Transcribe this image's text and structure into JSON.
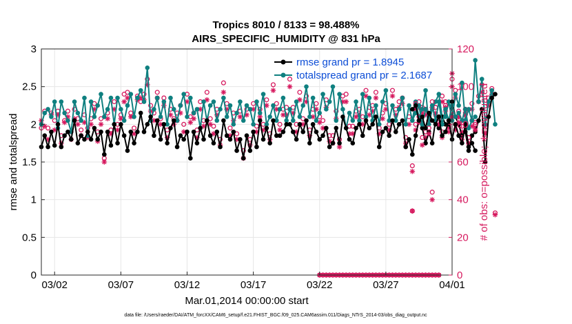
{
  "chart_data": {
    "type": "line",
    "title_line1": "Tropics 8010 / 8133 = 98.488%",
    "title_line2": "AIRS_SPECIFIC_HUMIDITY @ 831 hPa",
    "xlabel": "Mar.01,2014 00:00:00 start",
    "ylabel_left": "rmse and totalspread",
    "ylabel_right": "# of obs: o=possible; ∗=evaluated",
    "xlim": [
      0,
      31
    ],
    "ylim_left": [
      0,
      3
    ],
    "ylim_right": [
      0,
      120
    ],
    "x_ticks": [
      {
        "value": 1,
        "label": "03/02"
      },
      {
        "value": 6,
        "label": "03/07"
      },
      {
        "value": 11,
        "label": "03/12"
      },
      {
        "value": 16,
        "label": "03/17"
      },
      {
        "value": 21,
        "label": "03/22"
      },
      {
        "value": 26,
        "label": "03/27"
      },
      {
        "value": 31,
        "label": "04/01"
      }
    ],
    "y_ticks_left": [
      {
        "value": 0,
        "label": "0"
      },
      {
        "value": 0.5,
        "label": "0.5"
      },
      {
        "value": 1,
        "label": "1"
      },
      {
        "value": 1.5,
        "label": "1.5"
      },
      {
        "value": 2,
        "label": "2"
      },
      {
        "value": 2.5,
        "label": "2.5"
      },
      {
        "value": 3,
        "label": "3"
      }
    ],
    "y_ticks_right": [
      {
        "value": 0,
        "label": "0"
      },
      {
        "value": 20,
        "label": "20"
      },
      {
        "value": 40,
        "label": "40"
      },
      {
        "value": 60,
        "label": "60"
      },
      {
        "value": 80,
        "label": "80"
      },
      {
        "value": 100,
        "label": "100"
      },
      {
        "value": 120,
        "label": "120"
      }
    ],
    "colors": {
      "rmse": "#000000",
      "totalspread": "#0f8080",
      "obs": "#d6195e",
      "axis_right": "#d6195e",
      "grid": "#e6e6e6",
      "legend_text": "#0c4dd6"
    },
    "legend": [
      {
        "key": "rmse",
        "label": "rmse grand pr = 1.8945"
      },
      {
        "key": "totalspread",
        "label": "totalspread grand pr = 2.1687"
      }
    ],
    "segments": [
      {
        "x_start": 0,
        "dx": 0.25,
        "rmse": [
          1.7,
          1.85,
          1.7,
          1.9,
          1.72,
          2.0,
          1.7,
          1.85,
          1.9,
          1.8,
          2.05,
          1.75,
          1.85,
          1.8,
          1.9,
          1.8,
          1.95,
          1.8,
          1.9,
          1.6,
          1.9,
          1.72,
          2.0,
          1.75,
          2.0,
          1.85,
          1.65,
          1.9,
          1.75,
          1.9,
          2.15,
          1.9,
          2.0,
          2.1,
          1.85,
          2.05,
          1.8,
          2.0,
          1.75,
          1.95,
          2.05,
          1.7,
          1.85,
          1.8,
          1.9,
          1.55,
          1.9,
          1.75,
          1.95,
          1.8,
          2.05,
          1.85,
          1.75,
          1.9,
          1.7,
          2.05,
          1.85,
          1.8,
          1.9,
          1.65,
          1.8,
          1.55,
          1.85,
          1.65,
          1.9,
          1.7,
          2.05,
          1.8,
          1.95,
          1.75,
          2.05,
          1.85,
          1.85,
          1.9,
          2.0,
          2.0,
          1.9,
          1.8,
          2.0,
          1.9,
          2.05,
          1.75,
          2.0,
          1.9,
          1.8,
          1.85,
          1.95,
          1.7,
          1.75,
          1.95,
          1.75,
          2.1,
          1.95,
          1.8,
          1.75,
          1.95,
          2.0,
          1.85,
          2.05,
          1.95,
          2.0,
          2.1,
          1.7,
          1.9,
          1.95,
          1.85,
          2.05,
          1.9,
          2.0,
          2.05,
          1.7,
          1.8,
          1.6,
          1.85,
          2.05,
          1.95,
          1.75,
          1.9,
          1.75,
          2.05,
          1.95,
          2.1,
          2.0,
          2.0,
          2.3,
          2.1,
          2.0,
          1.85,
          1.9,
          1.65,
          1.85,
          1.9,
          2.05,
          2.2,
          1.5,
          2.1,
          2.35,
          2.4
        ],
        "totalspread": [
          2.0,
          2.15,
          2.2,
          2.1,
          2.3,
          1.95,
          2.3,
          2.15,
          2.05,
          1.9,
          2.3,
          2.15,
          2.05,
          2.35,
          1.85,
          2.3,
          2.1,
          2.25,
          2.4,
          2.1,
          2.2,
          2.35,
          2.0,
          2.35,
          2.2,
          2.05,
          2.25,
          2.4,
          2.1,
          2.35,
          2.45,
          2.3,
          2.75,
          2.05,
          2.2,
          2.35,
          2.1,
          2.3,
          2.0,
          2.35,
          2.2,
          2.05,
          2.25,
          2.4,
          2.1,
          2.35,
          2.15,
          2.2,
          1.95,
          2.3,
          2.05,
          2.25,
          2.3,
          2.05,
          2.2,
          2.35,
          2.1,
          2.25,
          2.0,
          2.15,
          2.3,
          2.05,
          2.25,
          2.2,
          2.0,
          2.3,
          2.15,
          2.4,
          2.0,
          2.1,
          2.25,
          2.05,
          2.2,
          2.35,
          2.05,
          2.2,
          2.05,
          2.3,
          2.1,
          2.25,
          2.5,
          2.1,
          2.35,
          2.05,
          2.15,
          2.4,
          2.2,
          2.3,
          2.5,
          2.05,
          2.4,
          2.2,
          1.95,
          2.15,
          2.05,
          2.3,
          2.05,
          2.4,
          2.1,
          2.35,
          2.05,
          2.25,
          2.0,
          2.3,
          2.45,
          2.05,
          2.25,
          2.05,
          2.2,
          2.35,
          2.0,
          2.25,
          2.05,
          2.3,
          2.1,
          2.2,
          2.45,
          2.0,
          2.2,
          2.3,
          2.4,
          2.1,
          2.1,
          2.3,
          2.05,
          2.4,
          2.25,
          2.55,
          2.05,
          2.2,
          2.05,
          2.85,
          2.3,
          2.6,
          2.0,
          2.3,
          2.45,
          2.0
        ],
        "possible": [
          78,
          87,
          78,
          86,
          82,
          87,
          74,
          82,
          87,
          76,
          88,
          83,
          77,
          85,
          78,
          83,
          91,
          76,
          83,
          62,
          86,
          77,
          92,
          80,
          85,
          96,
          97,
          86,
          78,
          95,
          92,
          96,
          104,
          90,
          86,
          97,
          83,
          94,
          77,
          88,
          83,
          86,
          90,
          80,
          96,
          84,
          86,
          77,
          92,
          82,
          97,
          83,
          79,
          88,
          72,
          102,
          91,
          78,
          86,
          75,
          87,
          66,
          88,
          72,
          91,
          79,
          88,
          80,
          93,
          75,
          101,
          91,
          80,
          88,
          89,
          104,
          89,
          80,
          97,
          83,
          95,
          77,
          88,
          91,
          84,
          82,
          93,
          74,
          74,
          87,
          72,
          95,
          96,
          79,
          79,
          87,
          88,
          84,
          98,
          89,
          90,
          97,
          78,
          86,
          91,
          80,
          98,
          88,
          92,
          94,
          73,
          84,
          58,
          80,
          92,
          89,
          76,
          85,
          44,
          89,
          84,
          95,
          92,
          82,
          104,
          98,
          87,
          79,
          86,
          73,
          91,
          81,
          95,
          101,
          77,
          94,
          99,
          33
        ],
        "evaluated": [
          82,
          79,
          72,
          85,
          77,
          85,
          70,
          81,
          84,
          72,
          83,
          80,
          74,
          81,
          73,
          80,
          88,
          71,
          80,
          60,
          83,
          75,
          88,
          77,
          83,
          92,
          94,
          84,
          75,
          93,
          94,
          93,
          101,
          87,
          82,
          94,
          80,
          90,
          73,
          85,
          80,
          82,
          86,
          76,
          92,
          81,
          83,
          73,
          88,
          79,
          93,
          80,
          75,
          85,
          69,
          97,
          88,
          74,
          82,
          72,
          84,
          62,
          85,
          69,
          88,
          76,
          84,
          77,
          90,
          72,
          98,
          88,
          77,
          85,
          85,
          100,
          86,
          76,
          93,
          80,
          92,
          74,
          84,
          88,
          81,
          78,
          89,
          71,
          70,
          83,
          68,
          92,
          92,
          75,
          75,
          84,
          85,
          80,
          95,
          85,
          87,
          94,
          75,
          83,
          88,
          77,
          95,
          85,
          89,
          91,
          70,
          80,
          55,
          77,
          89,
          86,
          73,
          82,
          40,
          85,
          80,
          92,
          89,
          78,
          100,
          94,
          84,
          76,
          82,
          70,
          88,
          78,
          92,
          97,
          75,
          90,
          96,
          32
        ]
      },
      {
        "x_start": 21,
        "dx": 0.25,
        "rmse": [],
        "totalspread": [],
        "possible": [
          0,
          0,
          0,
          0,
          0,
          0,
          0,
          0,
          0,
          0,
          0,
          0,
          0,
          0,
          0,
          0,
          0,
          0,
          0,
          0,
          0,
          0,
          0,
          0,
          0,
          0,
          0,
          0,
          0,
          0,
          0,
          0,
          0,
          0,
          0,
          0,
          0
        ],
        "evaluated": [
          0,
          0,
          0,
          0,
          0,
          0,
          0,
          0,
          0,
          0,
          0,
          0,
          0,
          0,
          0,
          0,
          0,
          0,
          0,
          0,
          0,
          0,
          0,
          0,
          0,
          0,
          0,
          0,
          0,
          0,
          0,
          0,
          0,
          0,
          0,
          0,
          0
        ]
      },
      {
        "x_start": 28.0,
        "dx": 0.25,
        "rmse": [
          2.2,
          2.25,
          2.05,
          2.1,
          1.95,
          2.15,
          2.05,
          2.0,
          2.1,
          1.85,
          1.9,
          2.05,
          1.8,
          2.0,
          1.85,
          1.75,
          2.0,
          1.7,
          1.75,
          1.65
        ],
        "totalspread": [
          2.05,
          2.15,
          2.25,
          2.0,
          2.2,
          2.1,
          2.25,
          2.05,
          2.3,
          2.0,
          2.2,
          2.05,
          2.25,
          2.1,
          2.15,
          2.05,
          2.2,
          1.95,
          2.05,
          2.1
        ],
        "possible": [
          34,
          91,
          84,
          73,
          88,
          78,
          92,
          89,
          83,
          76,
          90,
          79,
          87,
          80,
          84,
          75,
          88,
          73,
          82,
          80
        ],
        "evaluated": [
          34,
          88,
          81,
          69,
          85,
          75,
          89,
          86,
          80,
          73,
          87,
          76,
          84,
          77,
          81,
          72,
          85,
          70,
          79,
          77
        ]
      }
    ],
    "extra_evaluated_point": {
      "x": 31,
      "y_right": 107
    }
  },
  "footer": {
    "datafile": "data file: /Users/raeder/DAI/ATM_forcXX/CAM6_setup/f.e21.FHIST_BGC.f09_025.CAM6assim.011/Diags_NTrS_2014-03/obs_diag_output.nc"
  }
}
